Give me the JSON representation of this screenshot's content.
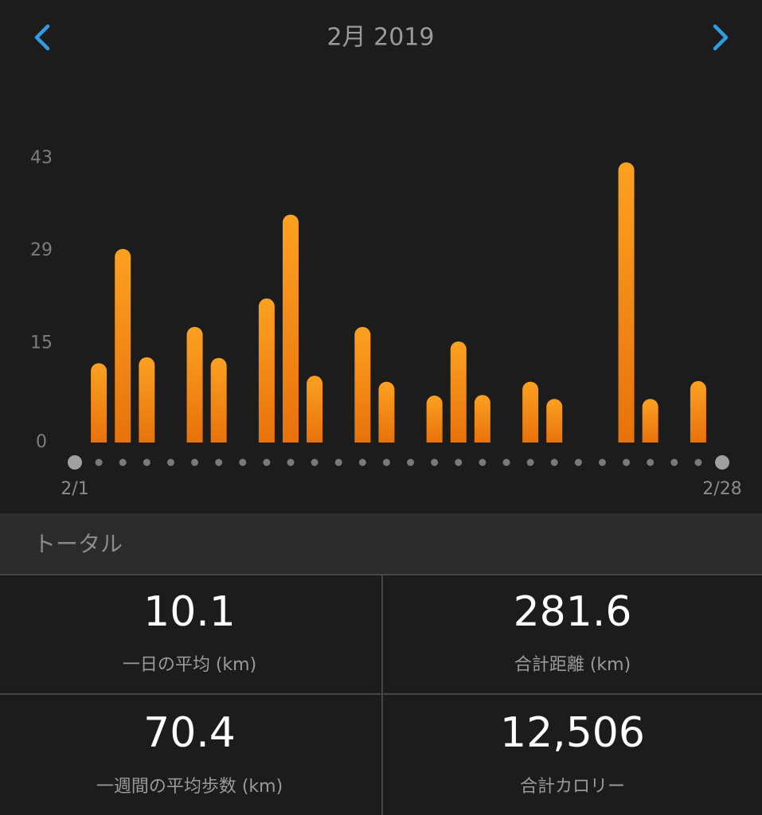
{
  "header": {
    "title": "2月 2019"
  },
  "chart_data": {
    "type": "bar",
    "categories": [
      "2/1",
      null,
      null,
      null,
      null,
      null,
      null,
      null,
      null,
      null,
      null,
      null,
      null,
      null,
      null,
      null,
      null,
      null,
      null,
      null,
      null,
      null,
      null,
      null,
      null,
      null,
      null,
      "2/28"
    ],
    "values": [
      0,
      12,
      29.3,
      12.9,
      0,
      17.5,
      12.8,
      0,
      21.8,
      34.5,
      10.1,
      0,
      17.5,
      9.2,
      0,
      7.1,
      15.3,
      7.2,
      0,
      9.2,
      6.6,
      0,
      0,
      42.4,
      6.6,
      0,
      9.3,
      0
    ],
    "color": "#f7941d",
    "ylim": [
      0,
      43
    ],
    "yticks": [
      0,
      15,
      29,
      43
    ]
  },
  "totals": {
    "title": "トータル",
    "stats": [
      {
        "value": "10.1",
        "label": "一日の平均 (km)"
      },
      {
        "value": "281.6",
        "label": "合計距離 (km)"
      },
      {
        "value": "70.4",
        "label": "一週間の平均歩数 (km)"
      },
      {
        "value": "12,506",
        "label": "合計カロリー"
      }
    ]
  }
}
